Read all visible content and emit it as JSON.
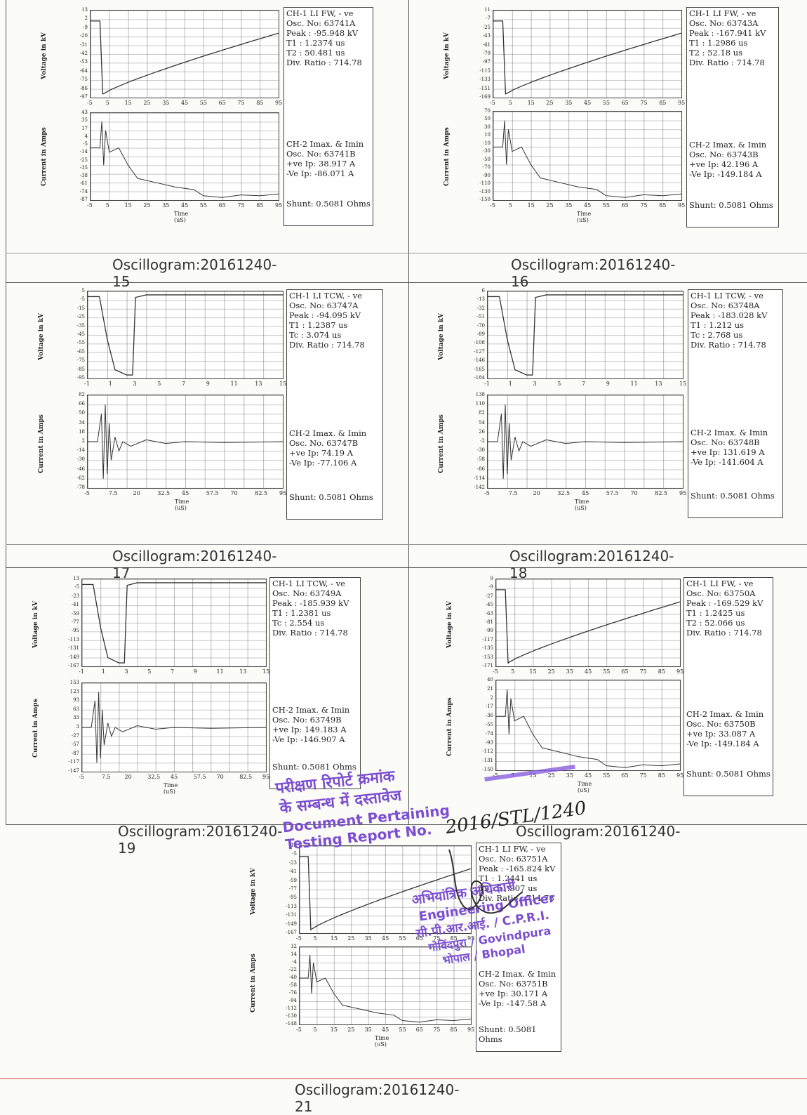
{
  "colors": {
    "stamp": "#7c4fd1",
    "ink": "#222222",
    "trace": "#333333"
  },
  "panels": [
    {
      "caption": "Oscillogram:20161240-15",
      "ch1": [
        "CH-1 LI FW, - ve",
        "Osc. No: 63741A",
        "Peak : -95.948 kV",
        "T1 : 1.2374 us",
        "T2 : 50.481 us",
        "Div. Ratio : 714.78"
      ],
      "ch2": [
        "CH-2 Imax. & Imin",
        "Osc. No: 63741B",
        "+ve Ip: 38.917 A",
        "-Ve Ip: -86.071 A"
      ],
      "shunt": "Shunt: 0.5081 Ohms",
      "vticks": [
        "13",
        "2",
        "-9",
        "-20",
        "-31",
        "-42",
        "-53",
        "-64",
        "-75",
        "-86",
        "-97"
      ],
      "iticks": [
        "43",
        "35",
        "17",
        "4",
        "-5",
        "-14",
        "-25",
        "-35",
        "-38",
        "-61",
        "-74",
        "-87"
      ],
      "vx": [
        "-5",
        "5",
        "15",
        "25",
        "35",
        "45",
        "55",
        "65",
        "75",
        "85",
        "95"
      ],
      "ix": [
        "-5",
        "5",
        "15",
        "25",
        "35",
        "45",
        "55",
        "65",
        "75",
        "85",
        "95"
      ]
    },
    {
      "caption": "Oscillogram:20161240-16",
      "ch1": [
        "CH-1 LI FW, - ve",
        "Osc. No: 63743A",
        "Peak : -167.941 kV",
        "T1 : 1.2986 us",
        "T2 : 52.18 us",
        "Div. Ratio : 714.78"
      ],
      "ch2": [
        "CH-2 Imax. & Imin",
        "Osc. No: 63743B",
        "+ve Ip: 42.196 A",
        "-Ve Ip: -149.184 A"
      ],
      "shunt": "Shunt: 0.5081 Ohms",
      "vticks": [
        "11",
        "-7",
        "-25",
        "-43",
        "-61",
        "-79",
        "-97",
        "-115",
        "-133",
        "-151",
        "-169"
      ],
      "iticks": [
        "70",
        "50",
        "30",
        "10",
        "-10",
        "-30",
        "-50",
        "-70",
        "-90",
        "-110",
        "-130",
        "-150"
      ],
      "vx": [
        "-5",
        "5",
        "15",
        "25",
        "35",
        "45",
        "55",
        "65",
        "75",
        "85",
        "95"
      ],
      "ix": [
        "-5",
        "5",
        "15",
        "25",
        "35",
        "45",
        "55",
        "65",
        "75",
        "85",
        "95"
      ]
    },
    {
      "caption": "Oscillogram:20161240-17",
      "ch1": [
        "CH-1 LI TCW, - ve",
        "Osc. No: 63747A",
        "Peak : -94.095 kV",
        "T1 : 1.2387 us",
        "Tc : 3.074 us",
        "Div. Ratio : 714.78"
      ],
      "ch2": [
        "CH-2 Imax. & Imin",
        "Osc. No. 63747B",
        "+ve Ip: 74.19 A",
        "-Ve Ip: -77.106 A"
      ],
      "shunt": "Shunt: 0.5081 Ohms",
      "vticks": [
        "5",
        "-5",
        "-15",
        "-25",
        "-35",
        "-45",
        "-55",
        "-65",
        "-75",
        "-85",
        "-95"
      ],
      "iticks": [
        "82",
        "66",
        "50",
        "34",
        "18",
        "2",
        "-14",
        "-30",
        "-46",
        "-62",
        "-78"
      ],
      "vx": [
        "-1",
        "1",
        "3",
        "5",
        "7",
        "9",
        "11",
        "13",
        "15"
      ],
      "ix": [
        "-5",
        "7.5",
        "20",
        "32.5",
        "45",
        "57.5",
        "70",
        "82.5",
        "95"
      ]
    },
    {
      "caption": "Oscillogram:20161240-18",
      "ch1": [
        "CH-1 LI TCW, - ve",
        "Osc. No: 63748A",
        "Peak : -183.028 kV",
        "T1 : 1.212 us",
        "Tc : 2.768 us",
        "Div. Ratio : 714.78"
      ],
      "ch2": [
        "CH-2 Imax. & Imin",
        "Osc. No: 63748B",
        "+ve Ip: 131.619 A",
        "-Ve Ip: -141.604 A"
      ],
      "shunt": "Shunt: 0.5081 Ohms",
      "vticks": [
        "6",
        "-13",
        "-32",
        "-51",
        "-70",
        "-89",
        "-108",
        "-127",
        "-146",
        "-165",
        "-184"
      ],
      "iticks": [
        "138",
        "110",
        "82",
        "54",
        "26",
        "-2",
        "-30",
        "-58",
        "-86",
        "-114",
        "-142"
      ],
      "vx": [
        "-1",
        "1",
        "3",
        "5",
        "7",
        "9",
        "11",
        "13",
        "15"
      ],
      "ix": [
        "-5",
        "7.5",
        "20",
        "32.5",
        "45",
        "57.5",
        "70",
        "82.5",
        "95"
      ]
    },
    {
      "caption": "Oscillogram:20161240-19",
      "ch1": [
        "CH-1 LI TCW, - ve",
        "Osc. No: 63749A",
        "Peak : -185.939 kV",
        "T1 : 1.2381 us",
        "Tc : 2.554 us",
        "Div. Ratio : 714.78"
      ],
      "ch2": [
        "CH-2 Imax. & Imin",
        "Osc. No: 63749B",
        "+ve Ip: 149.183 A",
        "-Ve Ip: -146.907 A"
      ],
      "shunt": "Shunt: 0.5081 Ohms",
      "vticks": [
        "13",
        "-5",
        "-23",
        "-41",
        "-59",
        "-77",
        "-95",
        "-113",
        "-131",
        "-149",
        "-167"
      ],
      "iticks": [
        "153",
        "123",
        "93",
        "63",
        "33",
        "3",
        "-27",
        "-57",
        "-87",
        "-117",
        "-147"
      ],
      "vx": [
        "-1",
        "1",
        "3",
        "5",
        "7",
        "9",
        "11",
        "13",
        "15"
      ],
      "ix": [
        "-5",
        "7.5",
        "20",
        "32.5",
        "45",
        "57.5",
        "70",
        "82.5",
        "95"
      ]
    },
    {
      "caption": "Oscillogram:20161240-20",
      "ch1": [
        "CH-1 LI FW, - ve",
        "Osc. No: 63750A",
        "Peak : -169.529 kV",
        "T1 : 1.2425 us",
        "T2 : 52.066 us",
        "Div. Ratio : 714.78"
      ],
      "ch2": [
        "CH-2 Imax. & Imin",
        "Osc. No: 63750B",
        "+ve Ip: 33.087 A",
        "-Ve Ip: -149.184 A"
      ],
      "shunt": "Shunt: 0.5081 Ohms",
      "vticks": [
        "9",
        "-9",
        "-27",
        "-45",
        "-63",
        "-81",
        "-99",
        "-117",
        "-135",
        "-153",
        "-171"
      ],
      "iticks": [
        "40",
        "21",
        "2",
        "-17",
        "-36",
        "-55",
        "-74",
        "-93",
        "-112",
        "-131",
        "-150"
      ],
      "vx": [
        "-5",
        "5",
        "15",
        "25",
        "35",
        "45",
        "55",
        "65",
        "75",
        "85",
        "95"
      ],
      "ix": [
        "-5",
        "5",
        "15",
        "25",
        "35",
        "45",
        "55",
        "65",
        "75",
        "85",
        "95"
      ]
    },
    {
      "caption": "Oscillogram:20161240-21",
      "ch1": [
        "CH-1 LI FW, - ve",
        "Osc. No: 63751A",
        "Peak : -165.824 kV",
        "T1 : 1.2441 us",
        "T2 : 51.907 us",
        "Div. Ratio : 714.78"
      ],
      "ch2": [
        "CH-2 Imax. & Imin",
        "Osc. No: 63751B",
        "+ve Ip: 30.171 A",
        "-Ve Ip: -147.58 A"
      ],
      "shunt": "Shunt: 0.5081 Ohms",
      "vticks": [
        "13",
        "-5",
        "-23",
        "-41",
        "-59",
        "-77",
        "-95",
        "-113",
        "-131",
        "-149",
        "-167"
      ],
      "iticks": [
        "32",
        "14",
        "-4",
        "-22",
        "-40",
        "-58",
        "-76",
        "-94",
        "-112",
        "-130",
        "-148"
      ],
      "vx": [
        "-5",
        "5",
        "15",
        "25",
        "35",
        "45",
        "55",
        "65",
        "75",
        "85",
        "95"
      ],
      "ix": [
        "-5",
        "5",
        "15",
        "25",
        "35",
        "45",
        "55",
        "65",
        "75",
        "85",
        "95"
      ]
    }
  ],
  "axis": {
    "voltage": "Voltage in kV",
    "current": "Current in Amps",
    "time": "Time (uS)"
  },
  "stamp": {
    "line1": "परीक्षण रिपोर्ट क्रमांक",
    "line2": "के सम्बन्ध में दस्तावेज",
    "line3": "Document Pertaining",
    "line4": "Testing Report No.",
    "number": "2016/STL/1240"
  },
  "seal": {
    "line1": "अभियांत्रिक अधिकारी",
    "line2": "Engineering Officer",
    "line3": "सी.पी.आर.आई. / C.P.R.I.",
    "line4": "गोविंदपुरा / Govindpura",
    "line5": "भोपाल / Bhopal"
  }
}
